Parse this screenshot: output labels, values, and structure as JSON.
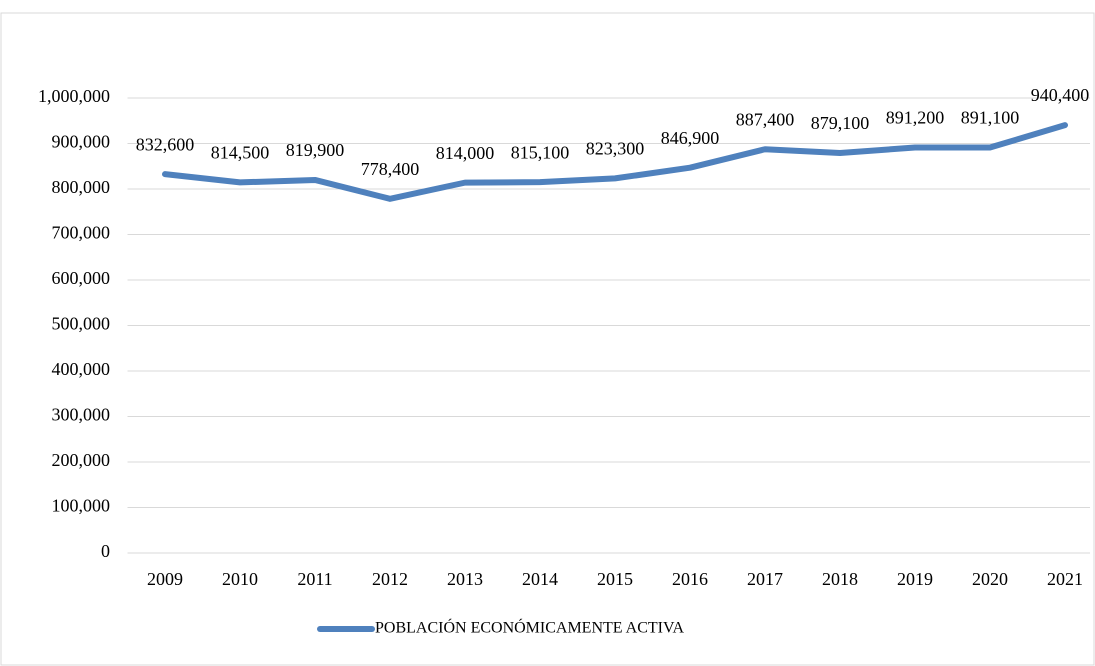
{
  "chart_data": {
    "type": "line",
    "categories": [
      "2009",
      "2010",
      "2011",
      "2012",
      "2013",
      "2014",
      "2015",
      "2016",
      "2017",
      "2018",
      "2019",
      "2020",
      "2021"
    ],
    "series": [
      {
        "name": "POBLACIÓN ECONÓMICAMENTE ACTIVA",
        "color": "#4f81bd",
        "values": [
          832600,
          814500,
          819900,
          778400,
          814000,
          815100,
          823300,
          846900,
          887400,
          879100,
          891200,
          891100,
          940400
        ],
        "value_labels": [
          "832,600",
          "814,500",
          "819,900",
          "778,400",
          "814,000",
          "815,100",
          "823,300",
          "846,900",
          "887,400",
          "879,100",
          "891,200",
          "891,100",
          "940,400"
        ]
      }
    ],
    "ylim": [
      0,
      1000000
    ],
    "yticks": [
      0,
      {
        "value": 100000,
        "label": "100,000"
      },
      {
        "value": 200000,
        "label": "200,000"
      },
      {
        "value": 300000,
        "label": "300,000"
      },
      {
        "value": 400000,
        "label": "400,000"
      },
      {
        "value": 500000,
        "label": "500,000"
      },
      {
        "value": 600000,
        "label": "600,000"
      },
      {
        "value": 700000,
        "label": "700,000"
      },
      {
        "value": 800000,
        "label": "800,000"
      },
      {
        "value": 900000,
        "label": "900,000"
      },
      {
        "value": 1000000,
        "label": "1,000,000"
      }
    ],
    "grid": true,
    "legend": "bottom"
  }
}
